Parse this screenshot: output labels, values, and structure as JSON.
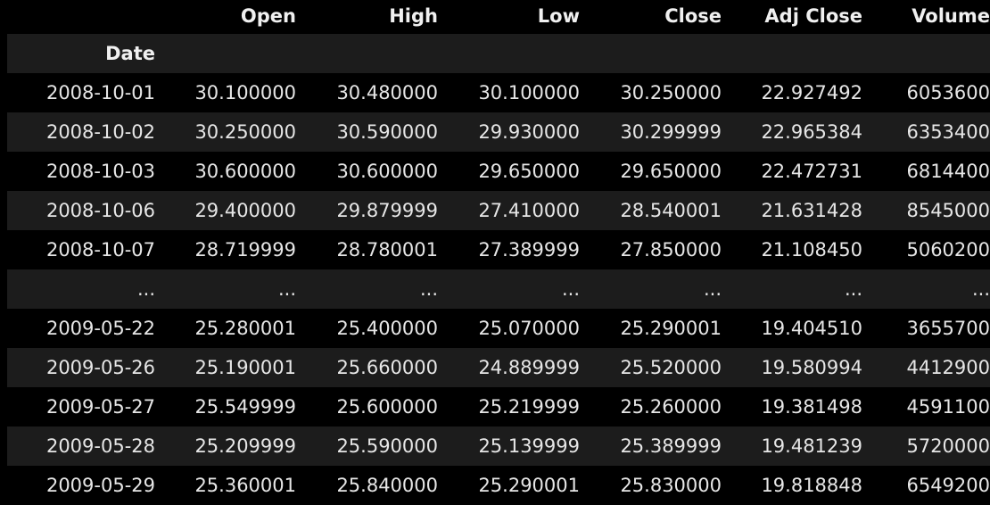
{
  "dataframe": {
    "index_name": "Date",
    "columns": [
      "Open",
      "High",
      "Low",
      "Close",
      "Adj Close",
      "Volume"
    ],
    "rows": [
      {
        "index": "2008-10-01",
        "values": [
          "30.100000",
          "30.480000",
          "30.100000",
          "30.250000",
          "22.927492",
          "6053600"
        ]
      },
      {
        "index": "2008-10-02",
        "values": [
          "30.250000",
          "30.590000",
          "29.930000",
          "30.299999",
          "22.965384",
          "6353400"
        ]
      },
      {
        "index": "2008-10-03",
        "values": [
          "30.600000",
          "30.600000",
          "29.650000",
          "29.650000",
          "22.472731",
          "6814400"
        ]
      },
      {
        "index": "2008-10-06",
        "values": [
          "29.400000",
          "29.879999",
          "27.410000",
          "28.540001",
          "21.631428",
          "8545000"
        ]
      },
      {
        "index": "2008-10-07",
        "values": [
          "28.719999",
          "28.780001",
          "27.389999",
          "27.850000",
          "21.108450",
          "5060200"
        ]
      },
      {
        "index": "...",
        "values": [
          "...",
          "...",
          "...",
          "...",
          "...",
          "..."
        ]
      },
      {
        "index": "2009-05-22",
        "values": [
          "25.280001",
          "25.400000",
          "25.070000",
          "25.290001",
          "19.404510",
          "3655700"
        ]
      },
      {
        "index": "2009-05-26",
        "values": [
          "25.190001",
          "25.660000",
          "24.889999",
          "25.520000",
          "19.580994",
          "4412900"
        ]
      },
      {
        "index": "2009-05-27",
        "values": [
          "25.549999",
          "25.600000",
          "25.219999",
          "25.260000",
          "19.381498",
          "4591100"
        ]
      },
      {
        "index": "2009-05-28",
        "values": [
          "25.209999",
          "25.590000",
          "25.139999",
          "25.389999",
          "19.481239",
          "5720000"
        ]
      },
      {
        "index": "2009-05-29",
        "values": [
          "25.360001",
          "25.840000",
          "25.290001",
          "25.830000",
          "19.818848",
          "6549200"
        ]
      }
    ]
  },
  "colors": {
    "background": "#000000",
    "band": "#1c1c1c",
    "text": "#e6e6e6"
  }
}
